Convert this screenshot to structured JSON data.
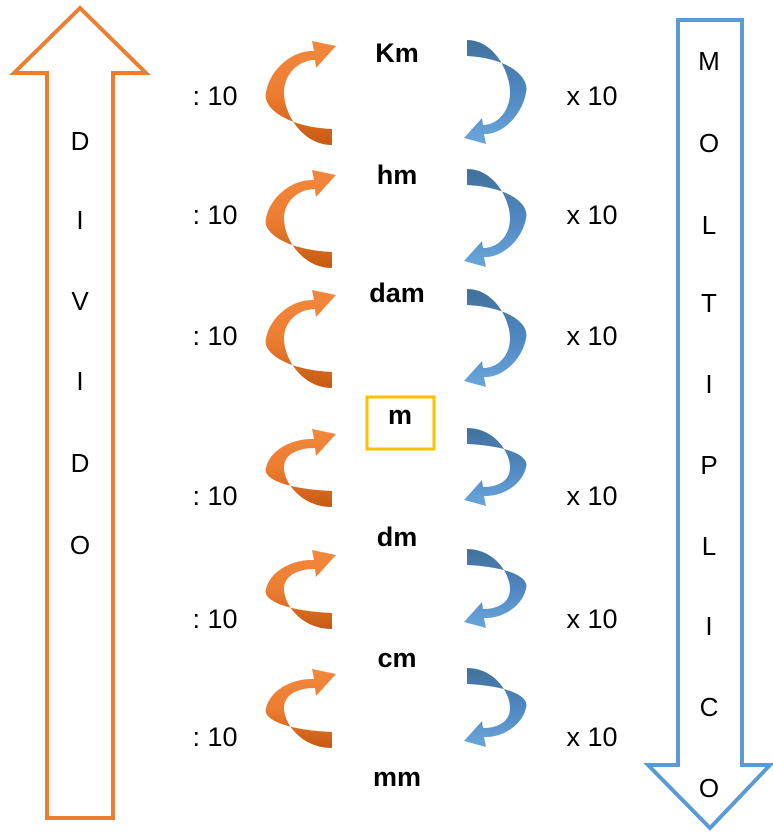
{
  "units": [
    "Km",
    "hm",
    "dam",
    "m",
    "dm",
    "cm",
    "mm"
  ],
  "base_unit": "m",
  "divide_label": ": 10",
  "multiply_label": "x 10",
  "left_word_letters": [
    "D",
    "I",
    "V",
    "I",
    "D",
    "O"
  ],
  "right_word_letters": [
    "M",
    "O",
    "L",
    "T",
    "I",
    "P",
    "L",
    "I",
    "C",
    "O"
  ],
  "colors": {
    "divide": "#ED7D31",
    "multiply": "#5B9BD5",
    "highlight": "#FFC000"
  }
}
